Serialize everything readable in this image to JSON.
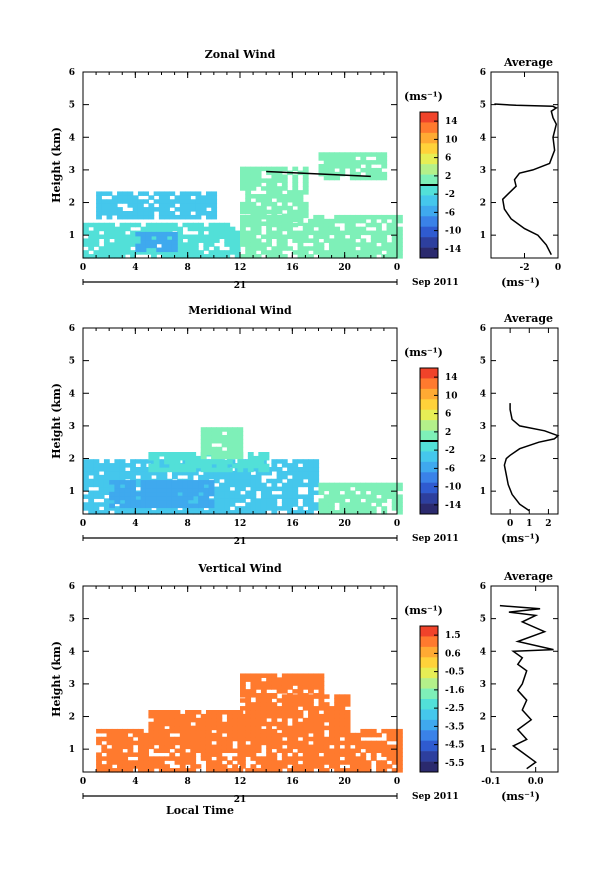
{
  "chart_data": [
    {
      "type": "heatmap",
      "title": "Zonal Wind",
      "ylabel": "Height (km)",
      "xlabel": "",
      "xlim": [
        0,
        24
      ],
      "ylim": [
        0.3,
        6
      ],
      "xticks": [
        "0",
        "4",
        "8",
        "12",
        "16",
        "20",
        "0"
      ],
      "yticks": [
        "1",
        "2",
        "3",
        "4",
        "5",
        "6"
      ],
      "date_day": "21",
      "date_month": "Sep 2011",
      "colorbar_unit": "(ms⁻¹)",
      "colorbar_ticks": [
        "14",
        "10",
        "6",
        "2",
        "-2",
        "-6",
        "-10",
        "-14"
      ],
      "colorbar_range": [
        -16,
        16
      ],
      "colorbar_marker": 0,
      "regions": [
        {
          "x": [
            0,
            12
          ],
          "y": [
            0.3,
            1.3
          ],
          "value": -2
        },
        {
          "x": [
            1,
            10
          ],
          "y": [
            1.5,
            2.3
          ],
          "value": -4
        },
        {
          "x": [
            4,
            7
          ],
          "y": [
            0.5,
            1.1
          ],
          "value": -5
        },
        {
          "x": [
            12,
            24
          ],
          "y": [
            0.3,
            1.6
          ],
          "value": 1
        },
        {
          "x": [
            12,
            17
          ],
          "y": [
            1.3,
            3.0
          ],
          "value": 1
        },
        {
          "x": [
            18,
            23
          ],
          "y": [
            2.7,
            3.5
          ],
          "value": 1
        }
      ],
      "line": {
        "x": [
          14,
          22
        ],
        "y": [
          2.95,
          2.8
        ]
      },
      "profile": {
        "title": "Average",
        "xlabel": "(ms⁻¹)",
        "xlim": [
          -4,
          0
        ],
        "xticks": [
          "-2",
          "0"
        ],
        "yticks": [
          "1",
          "2",
          "3",
          "4",
          "5",
          "6"
        ],
        "x": [
          -0.4,
          -0.7,
          -1.2,
          -2.0,
          -2.8,
          -3.2,
          -3.3,
          -2.9,
          -2.5,
          -2.6,
          -2.3,
          -1.5,
          -0.5,
          -0.2,
          -0.3,
          -0.1,
          -0.3,
          -0.4,
          -0.1,
          -0.2,
          -0.3,
          -2.5,
          -3.8
        ],
        "y": [
          0.4,
          0.7,
          1.0,
          1.2,
          1.5,
          1.8,
          2.1,
          2.3,
          2.5,
          2.7,
          2.9,
          3.0,
          3.2,
          3.6,
          4.0,
          4.4,
          4.6,
          4.8,
          4.9,
          4.92,
          4.95,
          4.98,
          5.02
        ]
      }
    },
    {
      "type": "heatmap",
      "title": "Meridional Wind",
      "ylabel": "Height (km)",
      "xlabel": "",
      "xlim": [
        0,
        24
      ],
      "ylim": [
        0.3,
        6
      ],
      "xticks": [
        "0",
        "4",
        "8",
        "12",
        "16",
        "20",
        "0"
      ],
      "yticks": [
        "1",
        "2",
        "3",
        "4",
        "5",
        "6"
      ],
      "date_day": "21",
      "date_month": "Sep 2011",
      "colorbar_unit": "(ms⁻¹)",
      "colorbar_ticks": [
        "14",
        "10",
        "6",
        "2",
        "-2",
        "-6",
        "-10",
        "-14"
      ],
      "colorbar_range": [
        -16,
        16
      ],
      "colorbar_marker": 0,
      "regions": [
        {
          "x": [
            0,
            18
          ],
          "y": [
            0.3,
            1.9
          ],
          "value": -3
        },
        {
          "x": [
            5,
            14
          ],
          "y": [
            1.6,
            2.2
          ],
          "value": -2
        },
        {
          "x": [
            9,
            12
          ],
          "y": [
            2.0,
            2.9
          ],
          "value": 2
        },
        {
          "x": [
            18,
            24
          ],
          "y": [
            0.3,
            1.2
          ],
          "value": 1
        },
        {
          "x": [
            2,
            10
          ],
          "y": [
            0.5,
            1.3
          ],
          "value": -5
        }
      ],
      "line": null,
      "profile": {
        "title": "Average",
        "xlabel": "(ms⁻¹)",
        "xlim": [
          -1,
          2.5
        ],
        "xticks": [
          "0",
          "1",
          "2"
        ],
        "yticks": [
          "1",
          "2",
          "3",
          "4",
          "5",
          "6"
        ],
        "x": [
          1.0,
          0.5,
          0.1,
          -0.1,
          -0.2,
          -0.3,
          -0.2,
          0.0,
          0.5,
          1.5,
          2.3,
          2.5,
          1.8,
          0.5,
          0.1,
          0.0,
          0.0
        ],
        "y": [
          0.4,
          0.6,
          0.9,
          1.2,
          1.5,
          1.8,
          2.0,
          2.1,
          2.3,
          2.5,
          2.6,
          2.7,
          2.85,
          3.0,
          3.2,
          3.5,
          3.7
        ]
      }
    },
    {
      "type": "heatmap",
      "title": "Vertical Wind",
      "ylabel": "Height (km)",
      "xlabel": "Local Time",
      "xlim": [
        0,
        24
      ],
      "ylim": [
        0.3,
        6
      ],
      "xticks": [
        "0",
        "4",
        "8",
        "12",
        "16",
        "20",
        "0"
      ],
      "yticks": [
        "1",
        "2",
        "3",
        "4",
        "5",
        "6"
      ],
      "date_day": "21",
      "date_month": "Sep 2011",
      "colorbar_unit": "(ms⁻¹)",
      "colorbar_ticks": [
        "1.5",
        "0.6",
        "-0.5",
        "-1.6",
        "-2.5",
        "-3.5",
        "-4.5",
        "-5.5"
      ],
      "colorbar_range": [
        -6,
        2
      ],
      "colorbar_marker": null,
      "regions": [
        {
          "x": [
            1,
            12
          ],
          "y": [
            0.3,
            1.6
          ],
          "value": 1.0
        },
        {
          "x": [
            5,
            12
          ],
          "y": [
            1.6,
            2.1
          ],
          "value": 1.0
        },
        {
          "x": [
            12,
            24
          ],
          "y": [
            0.3,
            1.6
          ],
          "value": 1.0
        },
        {
          "x": [
            12,
            20
          ],
          "y": [
            1.6,
            2.6
          ],
          "value": 1.0
        },
        {
          "x": [
            12,
            18
          ],
          "y": [
            2.6,
            3.3
          ],
          "value": 1.0
        }
      ],
      "line": null,
      "profile": {
        "title": "Average",
        "xlabel": "(ms⁻¹)",
        "xlim": [
          -0.1,
          0.05
        ],
        "xticks": [
          "-0.1",
          "0.0"
        ],
        "yticks": [
          "1",
          "2",
          "3",
          "4",
          "5",
          "6"
        ],
        "x": [
          -0.02,
          0.0,
          -0.03,
          -0.05,
          -0.02,
          -0.04,
          -0.01,
          -0.03,
          -0.02,
          -0.04,
          -0.03,
          -0.02,
          -0.04,
          -0.03,
          -0.05,
          0.04,
          -0.04,
          0.02,
          -0.03,
          0.0,
          -0.06,
          0.01,
          -0.08
        ],
        "y": [
          0.4,
          0.6,
          0.9,
          1.1,
          1.3,
          1.6,
          1.9,
          2.2,
          2.5,
          2.8,
          3.0,
          3.4,
          3.6,
          3.8,
          4.0,
          4.05,
          4.3,
          4.6,
          4.9,
          5.1,
          5.2,
          5.3,
          5.4
        ]
      }
    }
  ]
}
